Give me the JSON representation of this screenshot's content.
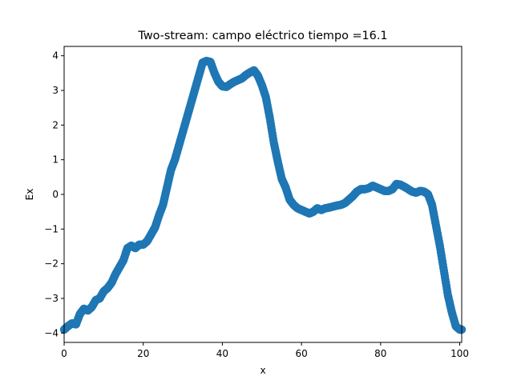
{
  "chart_data": {
    "type": "scatter",
    "title": "Two-stream: campo eléctrico  tiempo =16.1",
    "xlabel": "x",
    "ylabel": "Ex",
    "xlim": [
      0,
      100.5
    ],
    "ylim": [
      -4.27,
      4.27
    ],
    "xticks": [
      0,
      20,
      40,
      60,
      80,
      100
    ],
    "yticks": [
      -4,
      -3,
      -2,
      -1,
      0,
      1,
      2,
      3,
      4
    ],
    "xtick_labels": [
      "0",
      "20",
      "40",
      "60",
      "80",
      "100"
    ],
    "ytick_labels": [
      "−4",
      "−3",
      "−2",
      "−1",
      "0",
      "1",
      "2",
      "3",
      "4"
    ],
    "grid": false,
    "legend": "none",
    "marker_color": "#1f77b4",
    "series": [
      {
        "x": [
          0,
          1,
          2,
          3,
          4,
          5,
          6,
          7,
          8,
          9,
          10,
          11,
          12,
          13,
          14,
          15,
          16,
          17,
          18,
          19,
          20,
          21,
          22,
          23,
          24,
          25,
          26,
          27,
          28,
          29,
          30,
          31,
          32,
          33,
          34,
          35,
          36,
          37,
          38,
          39,
          40,
          41,
          42,
          43,
          44,
          45,
          46,
          47,
          48,
          49,
          50,
          51,
          52,
          53,
          54,
          55,
          56,
          57,
          58,
          59,
          60,
          61,
          62,
          63,
          64,
          65,
          66,
          67,
          68,
          69,
          70,
          71,
          72,
          73,
          74,
          75,
          76,
          77,
          78,
          79,
          80,
          81,
          82,
          83,
          84,
          85,
          86,
          87,
          88,
          89,
          90,
          91,
          92,
          93,
          94,
          95,
          96,
          97,
          98,
          99,
          100,
          100.5
        ],
        "y": [
          -3.9,
          -3.8,
          -3.72,
          -3.75,
          -3.45,
          -3.3,
          -3.35,
          -3.25,
          -3.05,
          -3.0,
          -2.8,
          -2.7,
          -2.55,
          -2.3,
          -2.1,
          -1.9,
          -1.55,
          -1.48,
          -1.55,
          -1.45,
          -1.45,
          -1.35,
          -1.15,
          -0.95,
          -0.6,
          -0.3,
          0.2,
          0.7,
          1.0,
          1.4,
          1.8,
          2.2,
          2.6,
          3.0,
          3.4,
          3.8,
          3.85,
          3.82,
          3.5,
          3.25,
          3.12,
          3.1,
          3.18,
          3.25,
          3.3,
          3.35,
          3.45,
          3.52,
          3.58,
          3.42,
          3.15,
          2.8,
          2.2,
          1.5,
          0.95,
          0.45,
          0.2,
          -0.15,
          -0.3,
          -0.4,
          -0.45,
          -0.5,
          -0.55,
          -0.5,
          -0.4,
          -0.45,
          -0.4,
          -0.38,
          -0.35,
          -0.32,
          -0.3,
          -0.25,
          -0.15,
          -0.05,
          0.08,
          0.15,
          0.15,
          0.18,
          0.25,
          0.2,
          0.15,
          0.1,
          0.1,
          0.15,
          0.3,
          0.28,
          0.22,
          0.15,
          0.08,
          0.05,
          0.1,
          0.08,
          0.0,
          -0.3,
          -0.9,
          -1.5,
          -2.2,
          -2.9,
          -3.4,
          -3.8,
          -3.9,
          -3.9
        ]
      }
    ]
  }
}
